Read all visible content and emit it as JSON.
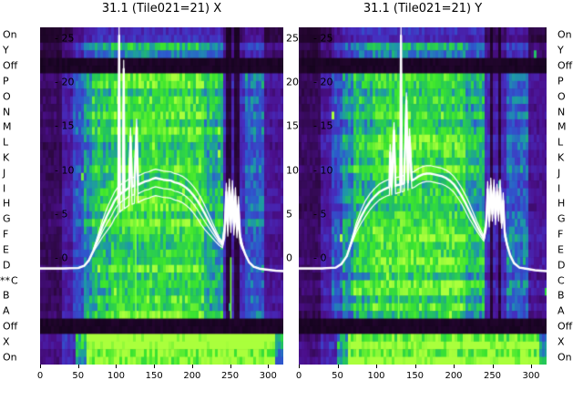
{
  "marker": {
    "label": "**",
    "row": "C",
    "row_index": 16
  },
  "row_labels": [
    "On",
    "Y",
    "Off",
    "P",
    "O",
    "N",
    "M",
    "L",
    "K",
    "J",
    "I",
    "H",
    "G",
    "F",
    "E",
    "D",
    "C",
    "B",
    "A",
    "Off",
    "X",
    "On"
  ],
  "axis": {
    "inner_y_tick_labels": [
      "- 25",
      "- 20",
      "- 15",
      "- 10",
      "- 5",
      "- 0"
    ],
    "between_y_tick_labels": [
      "25",
      "20",
      "15",
      "10",
      "5",
      "0"
    ],
    "x_tick_labels": [
      "0",
      "50",
      "100",
      "150",
      "200",
      "250",
      "300"
    ]
  },
  "colormap_stops": [
    [
      0.0,
      [
        8,
        2,
        15
      ]
    ],
    [
      0.12,
      [
        38,
        6,
        50
      ]
    ],
    [
      0.25,
      [
        75,
        15,
        140
      ]
    ],
    [
      0.38,
      [
        70,
        45,
        190
      ]
    ],
    [
      0.5,
      [
        45,
        90,
        205
      ]
    ],
    [
      0.6,
      [
        30,
        150,
        170
      ]
    ],
    [
      0.7,
      [
        35,
        195,
        95
      ]
    ],
    [
      0.82,
      [
        60,
        230,
        45
      ]
    ],
    [
      1.0,
      [
        170,
        255,
        60
      ]
    ]
  ],
  "chart_data": [
    {
      "type": "heatmap",
      "title": "31.1 (Tile021=21) X",
      "x_range": [
        0,
        320
      ],
      "x_ticks": [
        0,
        50,
        100,
        150,
        200,
        250,
        300
      ],
      "db_ticks": [
        25,
        20,
        15,
        10,
        5,
        0
      ],
      "rows": [
        "On",
        "Y",
        "Off",
        "P",
        "O",
        "N",
        "M",
        "L",
        "K",
        "J",
        "I",
        "H",
        "G",
        "F",
        "E",
        "D",
        "C",
        "B",
        "A",
        "Off",
        "X",
        "On"
      ],
      "row_types": [
        "purple",
        "dim",
        "off",
        "sig",
        "sig",
        "sig",
        "sig",
        "sig",
        "sig",
        "sig",
        "sig",
        "sig",
        "sig",
        "sig",
        "sig",
        "sig",
        "sig",
        "sig",
        "sig",
        "off",
        "bright",
        "bright"
      ],
      "column_envelope": [
        [
          0,
          30,
          0.18
        ],
        [
          30,
          44,
          0.3
        ],
        [
          44,
          58,
          0.45
        ],
        [
          58,
          70,
          0.58
        ],
        [
          70,
          95,
          0.7
        ],
        [
          95,
          215,
          0.78
        ],
        [
          215,
          240,
          0.66
        ],
        [
          240,
          246,
          0.35
        ],
        [
          246,
          252,
          0.13
        ],
        [
          252,
          256,
          0.32
        ],
        [
          256,
          262,
          0.13
        ],
        [
          262,
          268,
          0.35
        ],
        [
          268,
          295,
          0.5
        ],
        [
          295,
          320,
          0.27
        ]
      ],
      "bright_envelope": [
        [
          0,
          30,
          0.2
        ],
        [
          30,
          48,
          0.3
        ],
        [
          48,
          62,
          0.55
        ],
        [
          62,
          310,
          0.82
        ],
        [
          310,
          320,
          0.5
        ]
      ],
      "green_lines": [
        {
          "x": 125,
          "row_from": 12,
          "row_to": 18
        },
        {
          "x": 250,
          "row_from": 15,
          "row_to": 18
        }
      ],
      "seed": 7,
      "overlay_line_color": "#ffffff",
      "line_bundle_offsets_db": [
        0,
        1.0,
        -1.0,
        -2.0
      ],
      "profile_db": [
        [
          0,
          -1.2
        ],
        [
          30,
          -1.2
        ],
        [
          50,
          -1.15
        ],
        [
          58,
          -0.9
        ],
        [
          64,
          -0.3
        ],
        [
          70,
          0.8
        ],
        [
          76,
          2.2
        ],
        [
          82,
          3.6
        ],
        [
          88,
          4.8
        ],
        [
          94,
          5.8
        ],
        [
          98,
          6.5
        ],
        [
          102,
          7.0
        ],
        [
          103,
          7.1
        ],
        [
          104,
          25.3
        ],
        [
          105,
          7.2
        ],
        [
          107,
          7.4
        ],
        [
          109,
          7.5
        ],
        [
          110,
          21.5
        ],
        [
          111,
          7.6
        ],
        [
          114,
          7.8
        ],
        [
          117,
          8.0
        ],
        [
          119,
          13.8
        ],
        [
          121,
          8.1
        ],
        [
          124,
          8.2
        ],
        [
          127,
          14.8
        ],
        [
          129,
          8.3
        ],
        [
          133,
          8.5
        ],
        [
          138,
          8.7
        ],
        [
          143,
          8.8
        ],
        [
          148,
          9.0
        ],
        [
          152,
          9.1
        ],
        [
          157,
          9.0
        ],
        [
          162,
          8.9
        ],
        [
          167,
          8.85
        ],
        [
          172,
          8.8
        ],
        [
          177,
          8.6
        ],
        [
          182,
          8.5
        ],
        [
          187,
          8.3
        ],
        [
          192,
          8.0
        ],
        [
          197,
          7.6
        ],
        [
          202,
          7.1
        ],
        [
          207,
          6.5
        ],
        [
          212,
          5.8
        ],
        [
          217,
          5.0
        ],
        [
          222,
          4.2
        ],
        [
          227,
          3.4
        ],
        [
          232,
          2.6
        ],
        [
          236,
          2.0
        ],
        [
          240,
          1.6
        ],
        [
          243,
          3.5
        ],
        [
          245,
          7.5
        ],
        [
          247,
          3.8
        ],
        [
          249,
          8.0
        ],
        [
          251,
          4.5
        ],
        [
          253,
          7.8
        ],
        [
          255,
          4.0
        ],
        [
          257,
          7.0
        ],
        [
          259,
          3.5
        ],
        [
          261,
          6.0
        ],
        [
          263,
          2.5
        ],
        [
          266,
          1.4
        ],
        [
          270,
          0.4
        ],
        [
          275,
          -0.5
        ],
        [
          281,
          -1.0
        ],
        [
          290,
          -1.25
        ],
        [
          300,
          -1.35
        ],
        [
          310,
          -1.45
        ],
        [
          320,
          -1.5
        ]
      ]
    },
    {
      "type": "heatmap",
      "title": "31.1 (Tile021=21) Y",
      "x_range": [
        0,
        320
      ],
      "x_ticks": [
        0,
        50,
        100,
        150,
        200,
        250,
        300
      ],
      "db_ticks": [
        25,
        20,
        15,
        10,
        5,
        0
      ],
      "rows": [
        "On",
        "Y",
        "Off",
        "P",
        "O",
        "N",
        "M",
        "L",
        "K",
        "J",
        "I",
        "H",
        "G",
        "F",
        "E",
        "D",
        "C",
        "B",
        "A",
        "Off",
        "X",
        "On"
      ],
      "row_types": [
        "purple",
        "dim",
        "off",
        "sig",
        "sig",
        "sig",
        "sig",
        "sig",
        "sig",
        "sig",
        "sig",
        "sig",
        "sig",
        "sig",
        "sig",
        "sig",
        "sig",
        "sig",
        "sig",
        "off",
        "bright",
        "bright"
      ],
      "column_envelope": [
        [
          0,
          30,
          0.18
        ],
        [
          30,
          44,
          0.3
        ],
        [
          44,
          58,
          0.45
        ],
        [
          58,
          70,
          0.58
        ],
        [
          70,
          95,
          0.7
        ],
        [
          95,
          215,
          0.78
        ],
        [
          215,
          240,
          0.66
        ],
        [
          240,
          246,
          0.35
        ],
        [
          246,
          252,
          0.13
        ],
        [
          252,
          256,
          0.32
        ],
        [
          256,
          262,
          0.13
        ],
        [
          262,
          268,
          0.35
        ],
        [
          268,
          295,
          0.5
        ],
        [
          295,
          320,
          0.27
        ]
      ],
      "bright_envelope": [
        [
          0,
          30,
          0.2
        ],
        [
          30,
          48,
          0.3
        ],
        [
          48,
          62,
          0.55
        ],
        [
          62,
          310,
          0.82
        ],
        [
          310,
          320,
          0.5
        ]
      ],
      "green_lines": [
        {
          "x": 128,
          "row_from": 13,
          "row_to": 18
        }
      ],
      "seed": 13,
      "overlay_line_color": "#ffffff",
      "line_bundle_offsets_db": [
        0,
        0.9,
        -0.9
      ],
      "profile_db": [
        [
          0,
          -1.2
        ],
        [
          30,
          -1.2
        ],
        [
          48,
          -1.1
        ],
        [
          55,
          -0.7
        ],
        [
          62,
          0.2
        ],
        [
          68,
          1.8
        ],
        [
          74,
          3.4
        ],
        [
          80,
          4.6
        ],
        [
          86,
          5.6
        ],
        [
          92,
          6.4
        ],
        [
          98,
          7.0
        ],
        [
          104,
          7.5
        ],
        [
          110,
          7.8
        ],
        [
          115,
          8.0
        ],
        [
          117,
          8.05
        ],
        [
          118,
          12.0
        ],
        [
          120,
          8.1
        ],
        [
          123,
          14.5
        ],
        [
          125,
          8.2
        ],
        [
          128,
          8.3
        ],
        [
          131,
          8.35
        ],
        [
          132,
          25.3
        ],
        [
          133,
          8.4
        ],
        [
          136,
          8.5
        ],
        [
          139,
          17.9
        ],
        [
          141,
          8.6
        ],
        [
          143,
          13.8
        ],
        [
          146,
          8.8
        ],
        [
          150,
          9.0
        ],
        [
          155,
          9.3
        ],
        [
          160,
          9.5
        ],
        [
          165,
          9.6
        ],
        [
          170,
          9.6
        ],
        [
          175,
          9.5
        ],
        [
          180,
          9.4
        ],
        [
          185,
          9.3
        ],
        [
          190,
          9.1
        ],
        [
          195,
          8.8
        ],
        [
          200,
          8.4
        ],
        [
          205,
          7.8
        ],
        [
          210,
          7.1
        ],
        [
          215,
          6.3
        ],
        [
          220,
          5.4
        ],
        [
          225,
          4.5
        ],
        [
          230,
          3.6
        ],
        [
          235,
          2.8
        ],
        [
          239,
          2.2
        ],
        [
          242,
          3.8
        ],
        [
          244,
          7.8
        ],
        [
          246,
          4.2
        ],
        [
          248,
          8.2
        ],
        [
          250,
          5.0
        ],
        [
          252,
          8.0
        ],
        [
          254,
          4.5
        ],
        [
          256,
          7.5
        ],
        [
          258,
          5.0
        ],
        [
          260,
          8.0
        ],
        [
          262,
          4.0
        ],
        [
          264,
          6.5
        ],
        [
          266,
          2.8
        ],
        [
          269,
          1.5
        ],
        [
          273,
          0.3
        ],
        [
          278,
          -0.6
        ],
        [
          285,
          -1.1
        ],
        [
          295,
          -1.25
        ],
        [
          305,
          -1.4
        ],
        [
          320,
          -1.5
        ]
      ]
    }
  ]
}
